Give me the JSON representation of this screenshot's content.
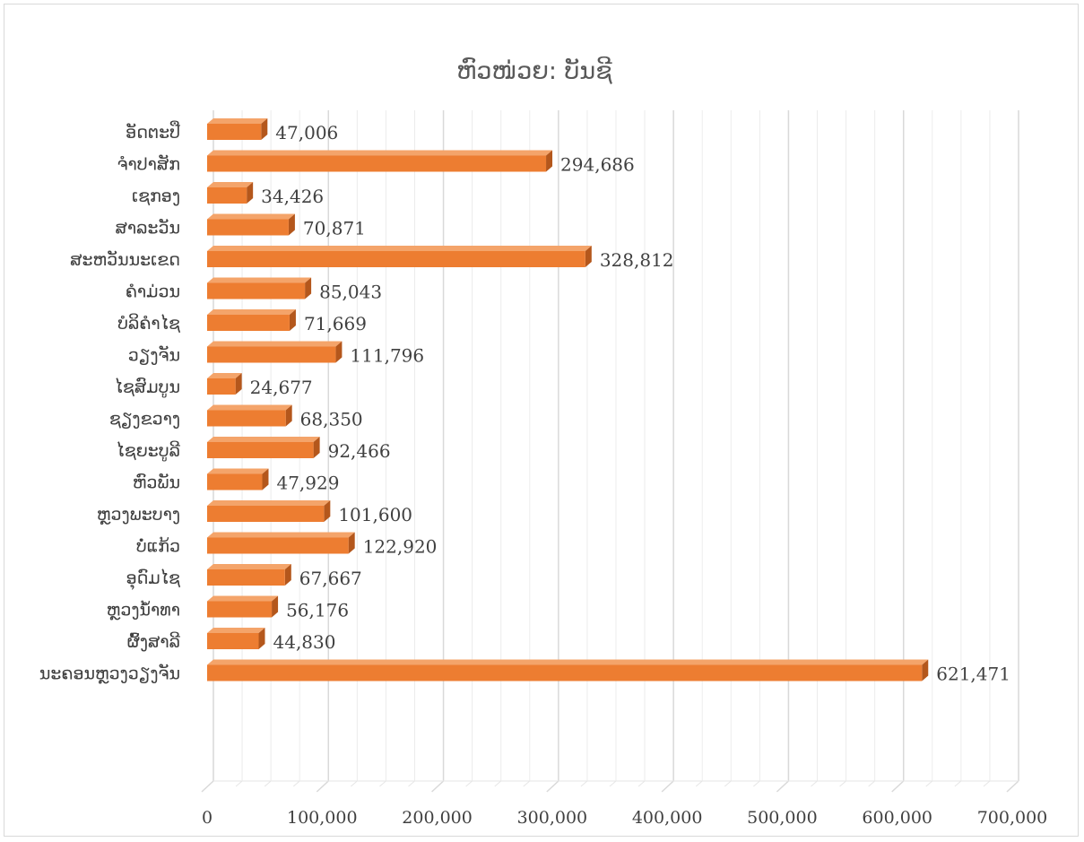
{
  "chart_data": {
    "type": "bar",
    "orientation": "horizontal",
    "style": "3d",
    "title": "ຫົວໜ່ວຍ: ບັນຊີ",
    "xlabel": "",
    "ylabel": "",
    "xlim": [
      0,
      700000
    ],
    "x_ticks": [
      "0",
      "100,000",
      "200,000",
      "300,000",
      "400,000",
      "500,000",
      "600,000",
      "700,000"
    ],
    "x_tick_values": [
      0,
      100000,
      200000,
      300000,
      400000,
      500000,
      600000,
      700000
    ],
    "grid": true,
    "legend": "none",
    "bar_color": "#ed7d31",
    "bar_side_color": "#b4571c",
    "bar_top_color": "#f4a46a",
    "categories": [
      "ອັດຕະປື",
      "ຈໍາປາສັກ",
      "ເຊກອງ",
      "ສາລະວັນ",
      "ສະຫວັນນະເຂດ",
      "ຄໍາມ່ວນ",
      "ບໍລິຄໍາໄຊ",
      "ວຽງຈັນ",
      "ໄຊສົມບູນ",
      "ຊຽງຂວາງ",
      "ໄຊຍະບູລີ",
      "ຫົວພັນ",
      "ຫຼວງພະບາງ",
      "ບໍ່ແກ້ວ",
      "ອຸດົມໄຊ",
      "ຫຼວງນໍ້າທາ",
      "ຜົ້ງສາລີ",
      "ນະຄອນຫຼວງວຽງຈັນ"
    ],
    "values": [
      47006,
      294686,
      34426,
      70871,
      328812,
      85043,
      71669,
      111796,
      24677,
      68350,
      92466,
      47929,
      101600,
      122920,
      67667,
      56176,
      44830,
      621471
    ],
    "value_labels": [
      "47,006",
      "294,686",
      "34,426",
      "70,871",
      "328,812",
      "85,043",
      "71,669",
      "111,796",
      "24,677",
      "68,350",
      "92,466",
      "47,929",
      "101,600",
      "122,920",
      "67,667",
      "56,176",
      "44,830",
      "621,471"
    ]
  }
}
